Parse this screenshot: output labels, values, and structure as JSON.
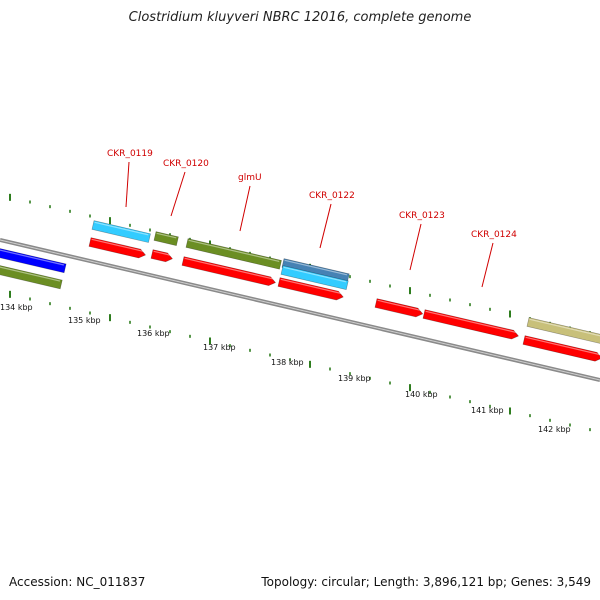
{
  "title": "Clostridium kluyveri NBRC 12016, complete genome",
  "footer": {
    "accession": "Accession: NC_011837",
    "summary": "Topology: circular; Length: 3,896,121 bp; Genes: 3,549"
  },
  "colors": {
    "backbone": "#8a8a8a",
    "tick": "#2e7d1e",
    "label": "#d00000",
    "red": "#ff0000",
    "olive": "#6b8e23",
    "cyan": "#33ccff",
    "steel": "#4682b4",
    "blue": "#0000ff",
    "khaki": "#c8c07a"
  },
  "kbp_labels": [
    "134 kbp",
    "135 kbp",
    "136 kbp",
    "137 kbp",
    "138 kbp",
    "139 kbp",
    "140 kbp",
    "141 kbp",
    "142 kbp"
  ],
  "gene_labels": [
    "CKR_0119",
    "CKR_0120",
    "glmU",
    "CKR_0122",
    "CKR_0123",
    "CKR_0124"
  ]
}
